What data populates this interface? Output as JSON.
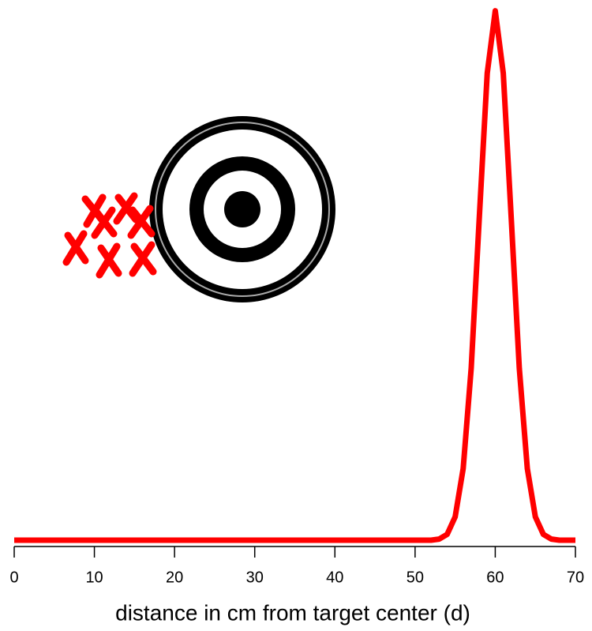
{
  "chart_data": {
    "type": "line",
    "xlabel": "distance in cm from target center (d)",
    "x": [
      0,
      52,
      53,
      54,
      55,
      56,
      57,
      58,
      59,
      60,
      61,
      62,
      63,
      64,
      65,
      66,
      67,
      68,
      70
    ],
    "series": [
      {
        "color": "#ff0000",
        "values": [
          0,
          0,
          0.0004,
          0.0022,
          0.0088,
          0.027,
          0.0648,
          0.121,
          0.176,
          0.1995,
          0.176,
          0.121,
          0.0648,
          0.027,
          0.0088,
          0.0022,
          0.0004,
          0,
          0
        ]
      }
    ],
    "xlim": [
      0,
      70
    ],
    "xticks": [
      0,
      10,
      20,
      30,
      40,
      50,
      60,
      70
    ],
    "ylim": [
      0,
      0.2
    ]
  }
}
